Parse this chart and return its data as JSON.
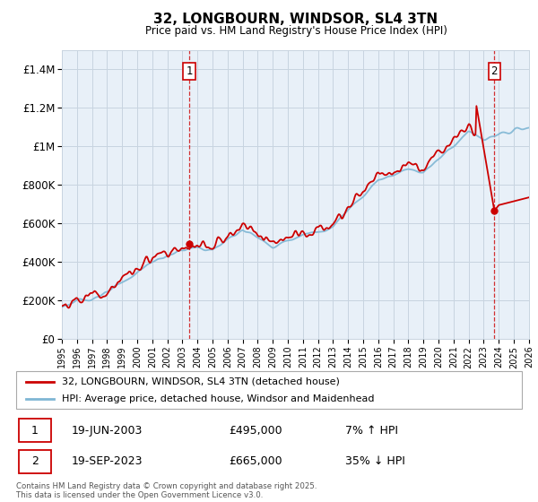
{
  "title": "32, LONGBOURN, WINDSOR, SL4 3TN",
  "subtitle": "Price paid vs. HM Land Registry's House Price Index (HPI)",
  "ylabel_ticks": [
    "£0",
    "£200K",
    "£400K",
    "£600K",
    "£800K",
    "£1M",
    "£1.2M",
    "£1.4M"
  ],
  "ytick_values": [
    0,
    200000,
    400000,
    600000,
    800000,
    1000000,
    1200000,
    1400000
  ],
  "ylim": [
    0,
    1500000
  ],
  "xlim_start": 1995,
  "xlim_end": 2026,
  "legend_line1": "32, LONGBOURN, WINDSOR, SL4 3TN (detached house)",
  "legend_line2": "HPI: Average price, detached house, Windsor and Maidenhead",
  "sale1_date": "19-JUN-2003",
  "sale1_price": "£495,000",
  "sale1_hpi": "7% ↑ HPI",
  "sale1_year": 2003.46,
  "sale1_value": 495000,
  "sale2_date": "19-SEP-2023",
  "sale2_price": "£665,000",
  "sale2_hpi": "35% ↓ HPI",
  "sale2_year": 2023.71,
  "sale2_value": 665000,
  "copyright_text": "Contains HM Land Registry data © Crown copyright and database right 2025.\nThis data is licensed under the Open Government Licence v3.0.",
  "hpi_color": "#7eb6d4",
  "price_color": "#cc0000",
  "background_color": "#ffffff",
  "chart_bg_color": "#e8f0f8",
  "grid_color": "#c8d4e0",
  "vline_color": "#cc0000"
}
